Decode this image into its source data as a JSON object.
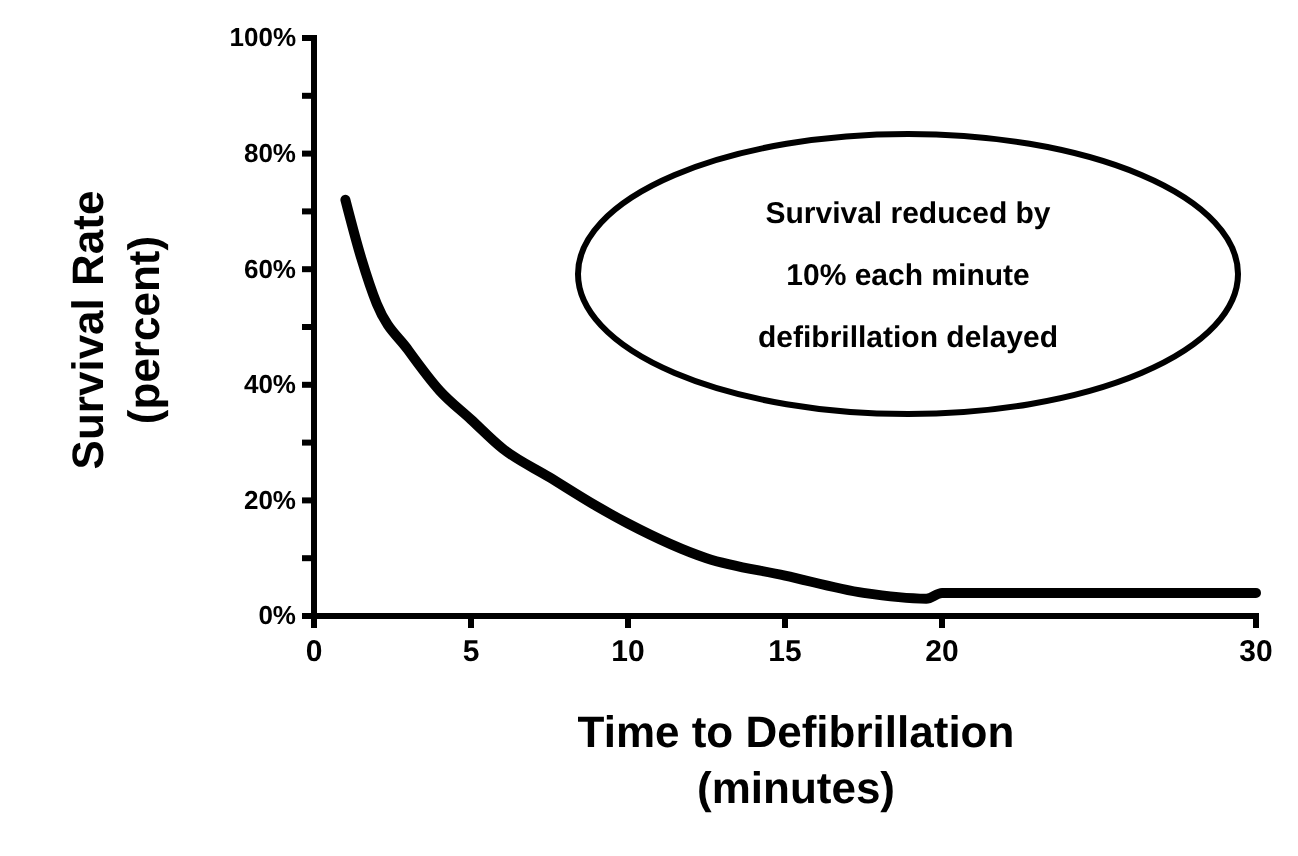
{
  "chart_data": {
    "type": "line",
    "xlabel": "Time to Defibrillation\n(minutes)",
    "ylabel": "Survival Rate\n(percent)",
    "x": [
      1,
      1.5,
      2,
      3,
      4,
      5,
      6,
      7.5,
      9,
      10,
      12.5,
      15,
      17.5,
      19.5,
      20,
      30
    ],
    "series": [
      {
        "color": "#000000",
        "values": [
          72,
          62,
          54,
          46,
          39,
          34,
          29,
          24,
          19,
          16,
          10,
          7,
          4,
          3,
          4,
          4
        ]
      }
    ],
    "xlim": [
      0,
      30
    ],
    "xticks": [
      0,
      5,
      10,
      15,
      20,
      30
    ],
    "ylim": [
      0,
      100
    ],
    "yticks": [
      {
        "value": 0,
        "label": "0%"
      },
      {
        "value": 10,
        "label": null
      },
      {
        "value": 20,
        "label": "20%"
      },
      {
        "value": 30,
        "label": null
      },
      {
        "value": 40,
        "label": "40%"
      },
      {
        "value": 50,
        "label": null
      },
      {
        "value": 60,
        "label": "60%"
      },
      {
        "value": 70,
        "label": null
      },
      {
        "value": 80,
        "label": "80%"
      },
      {
        "value": 90,
        "label": null
      },
      {
        "value": 100,
        "label": "100%"
      }
    ],
    "annotations": [
      "Survival reduced by\n10% each minute\ndefibrillation delayed"
    ],
    "grid": false,
    "marker": "none",
    "line_style": "solid"
  }
}
